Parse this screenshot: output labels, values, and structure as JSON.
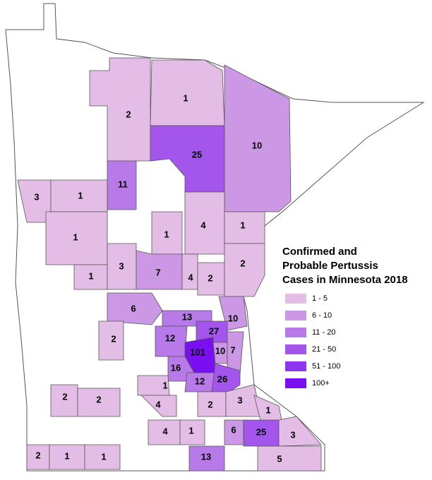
{
  "legend": {
    "title": [
      "Confirmed and",
      "Probable Pertussis",
      "Cases in Minnesota 2018"
    ],
    "classes": [
      {
        "label": "1 - 5",
        "color": "#e4bde6"
      },
      {
        "label": "6 - 10",
        "color": "#cc98e6"
      },
      {
        "label": "11 - 20",
        "color": "#b77ae8"
      },
      {
        "label": "21 - 50",
        "color": "#a355ec"
      },
      {
        "label": "51 - 100",
        "color": "#8e35f0"
      },
      {
        "label": "100+",
        "color": "#7a10f2"
      }
    ]
  },
  "counties": [
    {
      "value": 1,
      "color": "#e4bde6"
    },
    {
      "value": 2,
      "color": "#e4bde6"
    },
    {
      "value": 25,
      "color": "#a355ec"
    },
    {
      "value": 10,
      "color": "#cc98e6"
    },
    {
      "value": 11,
      "color": "#b77ae8"
    },
    {
      "value": 3,
      "color": "#e4bde6"
    },
    {
      "value": 1,
      "color": "#e4bde6"
    },
    {
      "value": 1,
      "color": "#e4bde6"
    },
    {
      "value": 1,
      "color": "#e4bde6"
    },
    {
      "value": 3,
      "color": "#e4bde6"
    },
    {
      "value": 1,
      "color": "#e4bde6"
    },
    {
      "value": 4,
      "color": "#e4bde6"
    },
    {
      "value": 1,
      "color": "#e4bde6"
    },
    {
      "value": 7,
      "color": "#cc98e6"
    },
    {
      "value": 4,
      "color": "#e4bde6"
    },
    {
      "value": 2,
      "color": "#e4bde6"
    },
    {
      "value": 2,
      "color": "#e4bde6"
    },
    {
      "value": 6,
      "color": "#cc98e6"
    },
    {
      "value": 13,
      "color": "#b77ae8"
    },
    {
      "value": 10,
      "color": "#cc98e6"
    },
    {
      "value": 2,
      "color": "#e4bde6"
    },
    {
      "value": 12,
      "color": "#b77ae8"
    },
    {
      "value": 27,
      "color": "#a355ec"
    },
    {
      "value": 101,
      "color": "#7a10f2"
    },
    {
      "value": 10,
      "color": "#cc98e6"
    },
    {
      "value": 7,
      "color": "#cc98e6"
    },
    {
      "value": 16,
      "color": "#b77ae8"
    },
    {
      "value": 12,
      "color": "#b77ae8"
    },
    {
      "value": 26,
      "color": "#a355ec"
    },
    {
      "value": 1,
      "color": "#e4bde6"
    },
    {
      "value": 4,
      "color": "#e4bde6"
    },
    {
      "value": 2,
      "color": "#e4bde6"
    },
    {
      "value": 3,
      "color": "#e4bde6"
    },
    {
      "value": 1,
      "color": "#e4bde6"
    },
    {
      "value": 2,
      "color": "#e4bde6"
    },
    {
      "value": 2,
      "color": "#e4bde6"
    },
    {
      "value": 4,
      "color": "#e4bde6"
    },
    {
      "value": 1,
      "color": "#e4bde6"
    },
    {
      "value": 6,
      "color": "#cc98e6"
    },
    {
      "value": 25,
      "color": "#a355ec"
    },
    {
      "value": 3,
      "color": "#e4bde6"
    },
    {
      "value": 2,
      "color": "#e4bde6"
    },
    {
      "value": 1,
      "color": "#e4bde6"
    },
    {
      "value": 1,
      "color": "#e4bde6"
    },
    {
      "value": 13,
      "color": "#b77ae8"
    },
    {
      "value": 5,
      "color": "#e4bde6"
    }
  ]
}
